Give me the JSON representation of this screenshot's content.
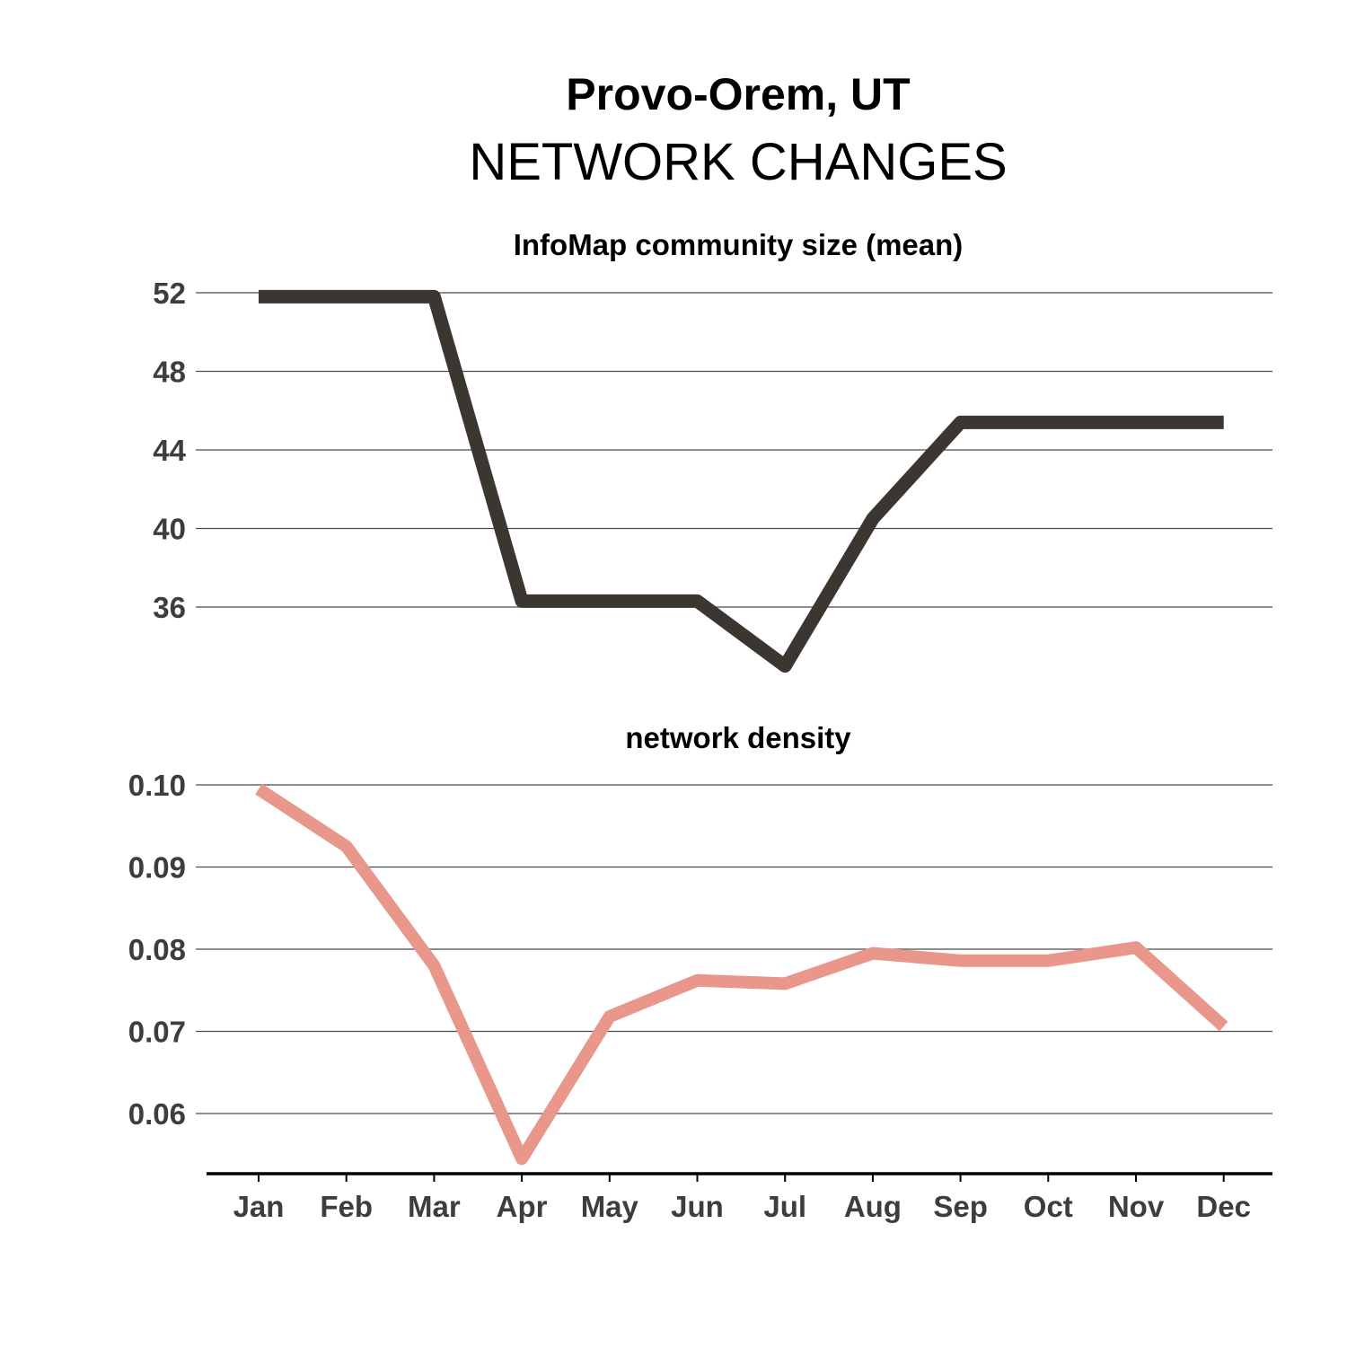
{
  "title": "Provo-Orem, UT",
  "subtitle": "NETWORK CHANGES",
  "chart_data": [
    {
      "type": "line",
      "title": "InfoMap community size (mean)",
      "categories": [
        "Jan",
        "Feb",
        "Mar",
        "Apr",
        "May",
        "Jun",
        "Jul",
        "Aug",
        "Sep",
        "Oct",
        "Nov",
        "Dec"
      ],
      "series": [
        {
          "values": [
            51.8,
            51.8,
            51.8,
            36.3,
            36.3,
            36.3,
            33.0,
            40.5,
            45.4,
            45.4,
            45.4,
            45.4
          ],
          "color": "#3b3630"
        }
      ],
      "yticks": [
        36,
        40,
        44,
        48,
        52
      ],
      "ylim": [
        32.5,
        52.5
      ],
      "grid": true
    },
    {
      "type": "line",
      "title": "network density",
      "categories": [
        "Jan",
        "Feb",
        "Mar",
        "Apr",
        "May",
        "Jun",
        "Jul",
        "Aug",
        "Sep",
        "Oct",
        "Nov",
        "Dec"
      ],
      "series": [
        {
          "values": [
            0.0995,
            0.0925,
            0.078,
            0.0545,
            0.0718,
            0.0762,
            0.0758,
            0.0795,
            0.0786,
            0.0786,
            0.0802,
            0.0706
          ],
          "color": "#e8978a"
        }
      ],
      "yticks": [
        0.06,
        0.07,
        0.08,
        0.09,
        0.1
      ],
      "ytick_labels": [
        "0.06",
        "0.07",
        "0.08",
        "0.09",
        "0.10"
      ],
      "ylim": [
        0.0525,
        0.1035
      ],
      "grid": true
    }
  ]
}
